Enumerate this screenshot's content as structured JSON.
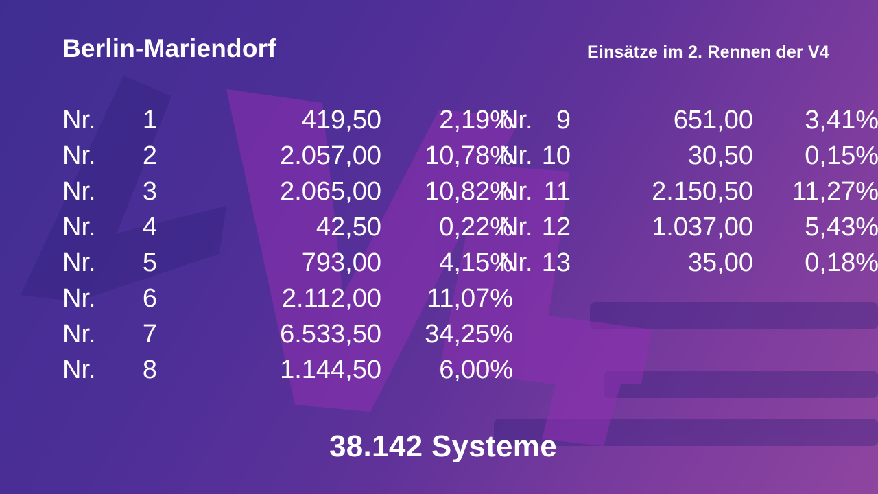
{
  "header": {
    "title": "Berlin-Mariendorf",
    "subtitle": "Einsätze im 2. Rennen der V4"
  },
  "logo": {
    "text": "V4",
    "icon": "v4-logo-watermark"
  },
  "colors": {
    "bg_start": "#3f2e92",
    "bg_end": "#8e459f",
    "text": "#ffffff",
    "logo": "#8f2fb0"
  },
  "left_rows": [
    {
      "label": "Nr.",
      "num": "1",
      "amount": "419,50",
      "pct": "2,19%"
    },
    {
      "label": "Nr.",
      "num": "2",
      "amount": "2.057,00",
      "pct": "10,78%"
    },
    {
      "label": "Nr.",
      "num": "3",
      "amount": "2.065,00",
      "pct": "10,82%"
    },
    {
      "label": "Nr.",
      "num": "4",
      "amount": "42,50",
      "pct": "0,22%"
    },
    {
      "label": "Nr.",
      "num": "5",
      "amount": "793,00",
      "pct": "4,15%"
    },
    {
      "label": "Nr.",
      "num": "6",
      "amount": "2.112,00",
      "pct": "11,07%"
    },
    {
      "label": "Nr.",
      "num": "7",
      "amount": "6.533,50",
      "pct": "34,25%"
    },
    {
      "label": "Nr.",
      "num": "8",
      "amount": "1.144,50",
      "pct": "6,00%"
    }
  ],
  "right_rows": [
    {
      "label": "Nr.",
      "num": "9",
      "amount": "651,00",
      "pct": "3,41%"
    },
    {
      "label": "Nr.",
      "num": "10",
      "amount": "30,50",
      "pct": "0,15%"
    },
    {
      "label": "Nr.",
      "num": "11",
      "amount": "2.150,50",
      "pct": "11,27%"
    },
    {
      "label": "Nr.",
      "num": "12",
      "amount": "1.037,00",
      "pct": "5,43%"
    },
    {
      "label": "Nr.",
      "num": "13",
      "amount": "35,00",
      "pct": "0,18%"
    }
  ],
  "footer": {
    "total": "38.142 Systeme"
  }
}
